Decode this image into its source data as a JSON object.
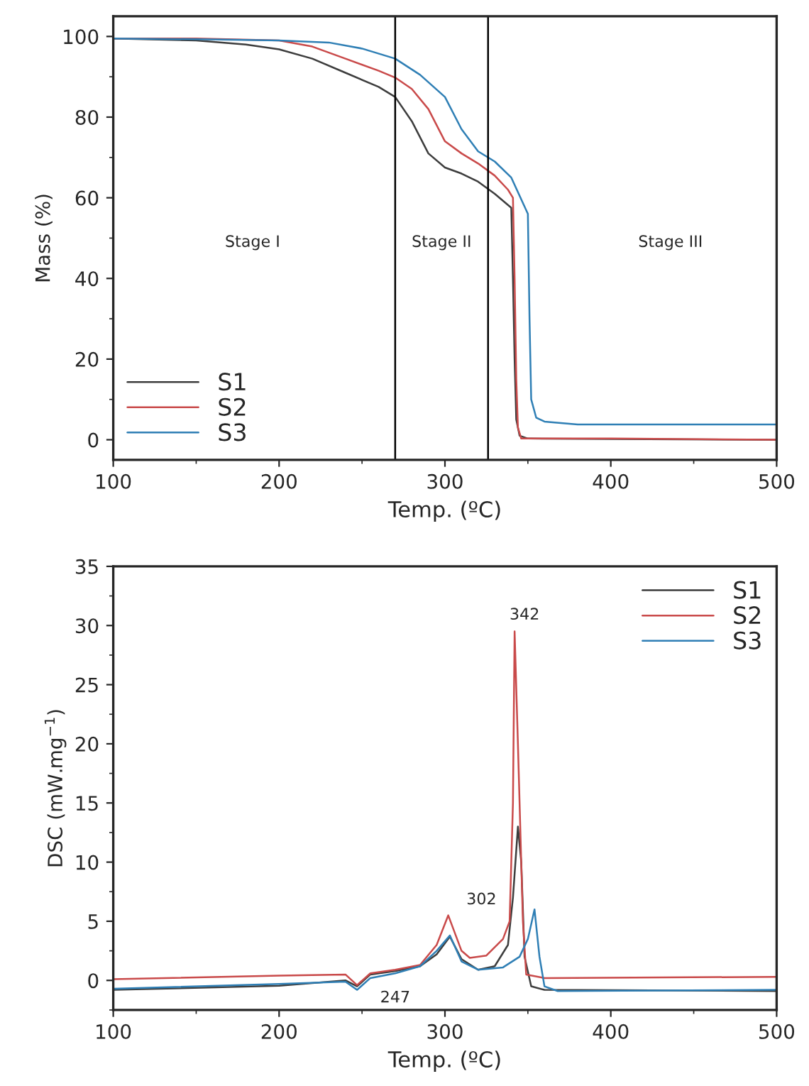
{
  "chart_data": [
    {
      "type": "line",
      "xlabel": "Temp. (ºC)",
      "ylabel": "Mass (%)",
      "xlim": [
        100,
        500
      ],
      "xticks": [
        100,
        200,
        300,
        400,
        500
      ],
      "ylim": [
        -5,
        105
      ],
      "yticks": [
        0,
        20,
        40,
        60,
        80,
        100
      ],
      "grid": false,
      "legend": "bottom left",
      "ref_lines": [
        {
          "axis": "x",
          "value": 270,
          "color": "#000000"
        },
        {
          "axis": "x",
          "value": 326,
          "color": "#000000"
        }
      ],
      "annotations": [
        "Stage I",
        "Stage II",
        "Stage III"
      ],
      "series": [
        {
          "name": "S1",
          "color": "#3d3d3d",
          "x": [
            100,
            150,
            180,
            200,
            220,
            240,
            260,
            270,
            280,
            290,
            300,
            310,
            320,
            330,
            340,
            341,
            342,
            343,
            345,
            350,
            400,
            500
          ],
          "values": [
            99.5,
            99,
            98,
            96.8,
            94.5,
            91,
            87.5,
            85,
            79,
            71,
            67.5,
            66,
            64,
            61,
            57.5,
            40,
            20,
            5,
            1,
            0.3,
            0.2,
            0
          ]
        },
        {
          "name": "S2",
          "color": "#c94a4a",
          "x": [
            100,
            150,
            200,
            220,
            240,
            260,
            270,
            280,
            290,
            300,
            310,
            320,
            330,
            338,
            341,
            342,
            343,
            344,
            346,
            400,
            500
          ],
          "values": [
            99.5,
            99.5,
            99,
            97.5,
            94.5,
            91.5,
            89.8,
            87,
            82,
            74,
            71,
            68.5,
            65.5,
            62,
            60,
            40,
            15,
            3,
            0.3,
            0.3,
            0
          ]
        },
        {
          "name": "S3",
          "color": "#2f7fb5",
          "x": [
            100,
            150,
            200,
            230,
            250,
            270,
            285,
            300,
            310,
            320,
            330,
            340,
            350,
            351,
            352,
            355,
            360,
            380,
            500
          ],
          "values": [
            99.5,
            99.3,
            99,
            98.5,
            97,
            94.5,
            90.5,
            85,
            77,
            71.5,
            69,
            65,
            56,
            30,
            10,
            5.5,
            4.5,
            3.8,
            3.8
          ]
        }
      ]
    },
    {
      "type": "line",
      "xlabel": "Temp. (ºC)",
      "ylabel": "DSC (mW.mg$^{−1}$)",
      "xlim": [
        100,
        500
      ],
      "xticks": [
        100,
        200,
        300,
        400,
        500
      ],
      "ylim": [
        -2.5,
        35
      ],
      "yticks": [
        0,
        5,
        10,
        15,
        20,
        25,
        30,
        35
      ],
      "grid": false,
      "legend": "top right",
      "annotations": [
        "342",
        "302",
        "247"
      ],
      "series": [
        {
          "name": "S1",
          "color": "#3d3d3d",
          "x": [
            100,
            200,
            240,
            247,
            255,
            270,
            285,
            295,
            303,
            310,
            320,
            330,
            338,
            341,
            344,
            346,
            348,
            352,
            360,
            500
          ],
          "values": [
            -0.8,
            -0.45,
            0,
            -0.5,
            0.5,
            0.8,
            1.2,
            2.2,
            3.7,
            1.8,
            0.9,
            1.2,
            3,
            7,
            13,
            10,
            2,
            -0.5,
            -0.8,
            -0.9
          ]
        },
        {
          "name": "S2",
          "color": "#c94a4a",
          "x": [
            100,
            200,
            240,
            247,
            255,
            270,
            285,
            295,
            302,
            310,
            315,
            325,
            335,
            339,
            341,
            342,
            344,
            347,
            349,
            360,
            500
          ],
          "values": [
            0.1,
            0.4,
            0.5,
            -0.4,
            0.6,
            0.9,
            1.3,
            3,
            5.5,
            2.5,
            1.9,
            2.1,
            3.5,
            5,
            15,
            29.5,
            20,
            5,
            0.5,
            0.2,
            0.3
          ]
        },
        {
          "name": "S3",
          "color": "#2f7fb5",
          "x": [
            100,
            200,
            240,
            247,
            255,
            270,
            285,
            295,
            303,
            310,
            320,
            335,
            345,
            350,
            354,
            357,
            360,
            368,
            500
          ],
          "values": [
            -0.7,
            -0.3,
            -0.1,
            -0.8,
            0.2,
            0.6,
            1.2,
            2.5,
            3.8,
            1.6,
            0.9,
            1.1,
            2,
            3.5,
            6,
            2,
            -0.5,
            -0.9,
            -0.8
          ]
        }
      ]
    }
  ]
}
